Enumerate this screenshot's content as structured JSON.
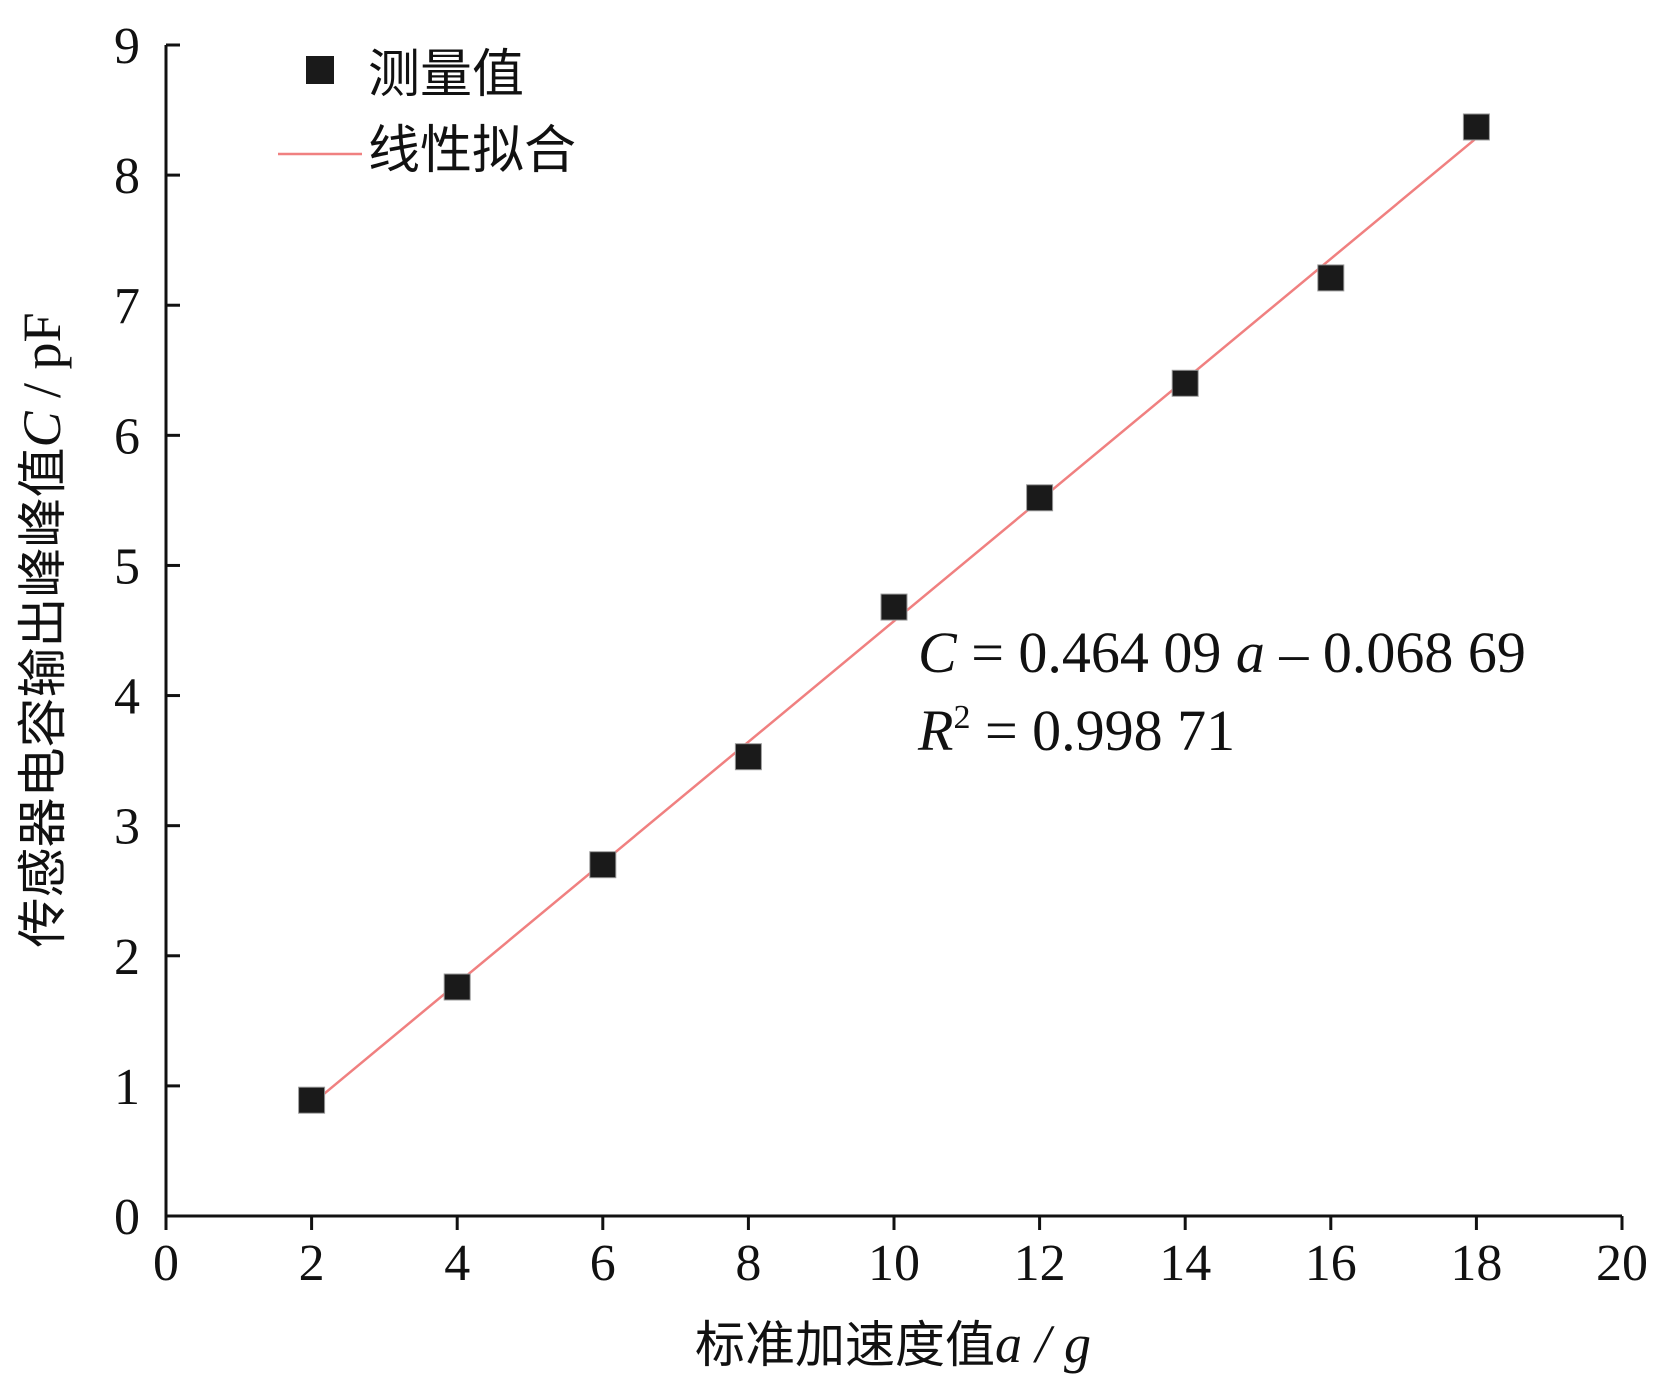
{
  "chart_data": {
    "type": "scatter",
    "xlabel": "标准加速度值",
    "xlabel_var": "a",
    "xlabel_unit": " / g",
    "ylabel": "传感器电容输出峰峰值",
    "ylabel_var": "C",
    "ylabel_unit": " / pF",
    "xlim": [
      0,
      20
    ],
    "ylim": [
      0,
      9
    ],
    "xticks": [
      "0",
      "2",
      "4",
      "6",
      "8",
      "10",
      "12",
      "14",
      "16",
      "18",
      "20"
    ],
    "yticks": [
      "0",
      "1",
      "2",
      "3",
      "4",
      "5",
      "6",
      "7",
      "8",
      "9"
    ],
    "grid": false,
    "legend_position": "top-left",
    "series": [
      {
        "name": "测量值",
        "kind": "scatter",
        "marker": "square",
        "color": "#1a1a1a",
        "x": [
          2,
          4,
          6,
          8,
          10,
          12,
          14,
          16,
          18
        ],
        "y": [
          0.89,
          1.76,
          2.7,
          3.53,
          4.68,
          5.52,
          6.4,
          7.21,
          8.37
        ]
      },
      {
        "name": "线性拟合",
        "kind": "line",
        "color": "#f08080",
        "slope": 0.46409,
        "intercept": -0.06869,
        "x_range": [
          2,
          18
        ]
      }
    ],
    "annotation": {
      "eq_var": "C",
      "eq_mid": " = 0.464 09 ",
      "eq_var2": "a",
      "eq_tail": " – 0.068 69",
      "r_var": "R",
      "r_sup": "2",
      "r_tail": " = 0.998 71"
    }
  }
}
